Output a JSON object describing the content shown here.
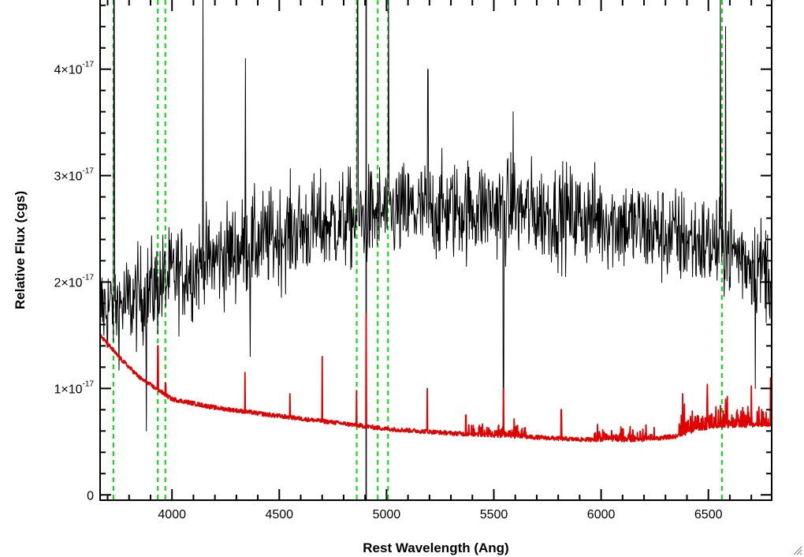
{
  "chart_data": {
    "type": "line",
    "xlabel": "Rest Wavelength (Ang)",
    "ylabel": "Relative Flux (cgs)",
    "xlim": [
      3665,
      6795
    ],
    "ylim": [
      -5e-19,
      4.65e-17
    ],
    "x_ticks": [
      {
        "value": 4000,
        "label": "4000"
      },
      {
        "value": 4500,
        "label": "4500"
      },
      {
        "value": 5000,
        "label": "5000"
      },
      {
        "value": 5500,
        "label": "5500"
      },
      {
        "value": 6000,
        "label": "6000"
      },
      {
        "value": 6500,
        "label": "6500"
      }
    ],
    "y_ticks": [
      {
        "value": 0,
        "label": "0"
      },
      {
        "value": 1e-17,
        "mantissa": "1",
        "times": "×",
        "base": "10",
        "exponent": "-17"
      },
      {
        "value": 2e-17,
        "mantissa": "2",
        "times": "×",
        "base": "10",
        "exponent": "-17"
      },
      {
        "value": 3e-17,
        "mantissa": "3",
        "times": "×",
        "base": "10",
        "exponent": "-17"
      },
      {
        "value": 4e-17,
        "mantissa": "4",
        "times": "×",
        "base": "10",
        "exponent": "-17"
      }
    ],
    "x_minor_step": 100,
    "y_minor_step": 2e-18,
    "grid": false,
    "series": [
      {
        "color": "#000000",
        "style": "noisy",
        "noise_sigma": 4.2e-18,
        "continuum": [
          [
            3665,
            1.75e-17
          ],
          [
            3800,
            1.8e-17
          ],
          [
            4000,
            2.05e-17
          ],
          [
            4300,
            2.3e-17
          ],
          [
            4600,
            2.5e-17
          ],
          [
            5000,
            2.65e-17
          ],
          [
            5500,
            2.7e-17
          ],
          [
            6000,
            2.6e-17
          ],
          [
            6400,
            2.4e-17
          ],
          [
            6600,
            2.3e-17
          ],
          [
            6795,
            2.1e-17
          ]
        ],
        "spikes": [
          [
            3730,
            4.65e-17
          ],
          [
            4145,
            4.65e-17
          ],
          [
            4342,
            4.1e-17
          ],
          [
            4865,
            4.65e-17
          ],
          [
            5010,
            4.65e-17
          ],
          [
            5193,
            4e-17
          ],
          [
            5590,
            3.6e-17
          ],
          [
            6555,
            4.65e-17
          ],
          [
            6580,
            4.4e-17
          ]
        ],
        "dips": [
          [
            3880,
            6e-18
          ],
          [
            4365,
            1.3e-17
          ],
          [
            5545,
            6e-18
          ],
          [
            6718,
            1e-17
          ]
        ]
      },
      {
        "color": "#e00000",
        "style": "smooth",
        "continuum": [
          [
            3665,
            1.5e-17
          ],
          [
            3750,
            1.3e-17
          ],
          [
            3850,
            1.1e-17
          ],
          [
            4000,
            9e-18
          ],
          [
            4200,
            8.2e-18
          ],
          [
            4500,
            7.4e-18
          ],
          [
            4800,
            6.7e-18
          ],
          [
            5000,
            6.2e-18
          ],
          [
            5300,
            5.8e-18
          ],
          [
            5600,
            5.5e-18
          ],
          [
            5900,
            5.2e-18
          ],
          [
            6200,
            5.2e-18
          ],
          [
            6350,
            5.5e-18
          ],
          [
            6450,
            6.2e-18
          ],
          [
            6600,
            6.5e-18
          ],
          [
            6795,
            6.6e-18
          ]
        ],
        "lines": [
          [
            3935,
            1.4e-17
          ],
          [
            3970,
            1.05e-17
          ],
          [
            4340,
            1.15e-17
          ],
          [
            4550,
            9.5e-18
          ],
          [
            4700,
            1.3e-17
          ],
          [
            4860,
            9.8e-18
          ],
          [
            4905,
            1.7e-17
          ],
          [
            5190,
            1e-17
          ],
          [
            5370,
            7.5e-18
          ],
          [
            5545,
            1e-17
          ],
          [
            5815,
            8e-18
          ],
          [
            6380,
            9.5e-18
          ],
          [
            6495,
            9e-18
          ],
          [
            6580,
            9e-18
          ],
          [
            6700,
            9e-18
          ],
          [
            6790,
            1.1e-17
          ]
        ]
      }
    ],
    "markers": [
      {
        "x": 3727,
        "color": "#00dd00",
        "style": "dashed"
      },
      {
        "x": 3934,
        "color": "#00dd00",
        "style": "dashed"
      },
      {
        "x": 3969,
        "color": "#00dd00",
        "style": "dashed"
      },
      {
        "x": 4861,
        "color": "#00dd00",
        "style": "dashed"
      },
      {
        "x": 4959,
        "color": "#00dd00",
        "style": "dashed"
      },
      {
        "x": 5007,
        "color": "#00dd00",
        "style": "dashed"
      },
      {
        "x": 6563,
        "color": "#00dd00",
        "style": "dashed"
      },
      {
        "x": 4905,
        "color": "#000000",
        "style": "solid"
      }
    ]
  },
  "window": {
    "resize_grip_icon": "resize-grip-icon"
  }
}
